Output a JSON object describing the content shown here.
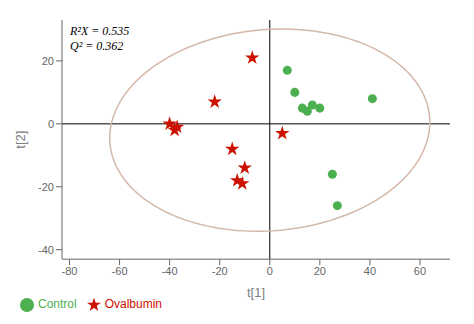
{
  "chart_data": {
    "type": "scatter",
    "xlabel": "t[1]",
    "ylabel": "t[2]",
    "annotations": [
      "R²X = 0.535",
      "Q² = 0.362"
    ],
    "series": [
      {
        "name": "Control",
        "color": "#4caf50",
        "marker": "circle",
        "x": [
          7,
          10,
          13,
          15,
          17,
          20,
          25,
          27,
          41
        ],
        "values": [
          17,
          10,
          5,
          4,
          6,
          5,
          -16,
          -26,
          8
        ]
      },
      {
        "name": "Ovalbumin",
        "color": "#cc1100",
        "marker": "star",
        "x": [
          -40,
          -38,
          -37,
          -22,
          -15,
          -13,
          -11,
          -10,
          -7,
          5
        ],
        "values": [
          0,
          -2,
          -1,
          7,
          -8,
          -18,
          -19,
          -14,
          21,
          -3
        ]
      }
    ],
    "ellipse": {
      "cx": 0,
      "cy": -2,
      "width": 128,
      "height": 64,
      "angle": 3,
      "color": "#d4b8a8"
    },
    "xlim": [
      -83,
      72
    ],
    "xticks": [
      -80,
      -60,
      -40,
      -20,
      0,
      20,
      40,
      60
    ],
    "ylim": [
      -43,
      33
    ],
    "yticks": [
      -40,
      -20,
      0,
      20
    ],
    "legend": "lower left",
    "grid": false
  }
}
